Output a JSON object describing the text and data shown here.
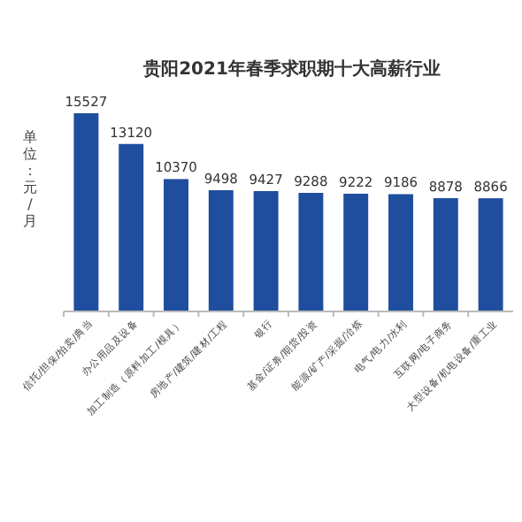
{
  "chart_data": {
    "type": "bar",
    "title": "贵阳2021年春季求职期十大高薪行业",
    "ylabel": "单位：元/月",
    "categories": [
      "信托/担保/拍卖/典当",
      "办公用品及设备",
      "加工制造（原料加工/模具）",
      "房地产/建筑/建材/工程",
      "银行",
      "基金/证券/期货/投资",
      "能源/矿产/采掘/冶炼",
      "电气/电力/水利",
      "互联网/电子商务",
      "大型设备/机电设备/重工业"
    ],
    "values": [
      15527,
      13120,
      10370,
      9498,
      9427,
      9288,
      9222,
      9186,
      8878,
      8866
    ],
    "color": "#1f4e9e",
    "data_labels": true
  }
}
